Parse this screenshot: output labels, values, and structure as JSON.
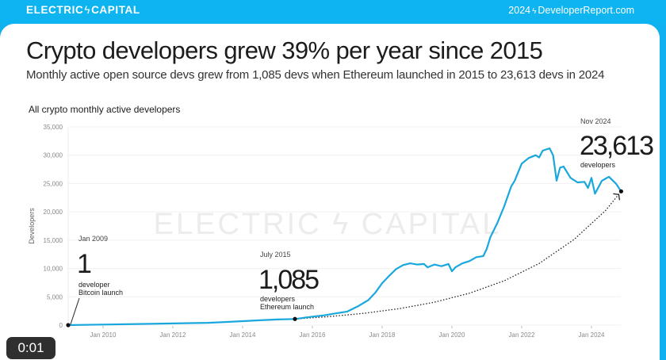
{
  "header": {
    "brand": "ELECTRIC",
    "brand_separator": "ϟ",
    "brand_2": "CAPITAL",
    "report_year": "2024",
    "report_separator": "ϟ",
    "report_site": "DeveloperReport.com"
  },
  "title": "Crypto developers grew 39% per year since 2015",
  "subtitle": "Monthly active open source devs grew from 1,085 devs when Ethereum launched in 2015 to 23,613 devs in 2024",
  "video_timestamp": "0:01",
  "watermark": "ELECTRIC ϟ CAPITAL",
  "colors": {
    "accent": "#0db4f0",
    "line": "#1aa7dd",
    "text": "#1c1c1c"
  },
  "annotations": [
    {
      "date": "Jan 2009",
      "value": "1",
      "line1": "developer",
      "line2": "Bitcoin launch"
    },
    {
      "date": "July 2015",
      "value": "1,085",
      "line1": "developers",
      "line2": "Ethereum launch"
    },
    {
      "date": "Nov 2024",
      "value": "23,613",
      "line1": "developers",
      "line2": ""
    }
  ],
  "chart_data": {
    "type": "line",
    "title": "All crypto monthly active developers",
    "xlabel": "",
    "ylabel": "Developers",
    "ylim": [
      0,
      35000
    ],
    "xlim": [
      2009.0,
      2024.9
    ],
    "yticks": [
      0,
      5000,
      10000,
      15000,
      20000,
      25000,
      30000,
      35000
    ],
    "ytick_labels": [
      "0",
      "5,000",
      "10,000",
      "15,000",
      "20,000",
      "25,000",
      "30,000",
      "35,000"
    ],
    "xticks": [
      2010,
      2012,
      2014,
      2016,
      2018,
      2020,
      2022,
      2024
    ],
    "xtick_labels": [
      "Jan 2010",
      "Jan 2012",
      "Jan 2014",
      "Jan 2016",
      "Jan 2018",
      "Jan 2020",
      "Jan 2022",
      "Jan 2024"
    ],
    "grid": true,
    "legend": "none",
    "series": [
      {
        "name": "Monthly active developers",
        "x": [
          2009.0,
          2010.0,
          2011.0,
          2012.0,
          2013.0,
          2013.5,
          2014.0,
          2014.5,
          2015.0,
          2015.5,
          2016.0,
          2016.3,
          2016.6,
          2017.0,
          2017.3,
          2017.6,
          2017.8,
          2018.0,
          2018.2,
          2018.4,
          2018.6,
          2018.8,
          2019.0,
          2019.2,
          2019.3,
          2019.5,
          2019.7,
          2019.9,
          2020.0,
          2020.1,
          2020.3,
          2020.5,
          2020.7,
          2020.9,
          2021.0,
          2021.1,
          2021.3,
          2021.5,
          2021.7,
          2021.8,
          2021.9,
          2022.0,
          2022.2,
          2022.4,
          2022.5,
          2022.6,
          2022.8,
          2022.9,
          2023.0,
          2023.1,
          2023.2,
          2023.4,
          2023.6,
          2023.8,
          2023.9,
          2024.0,
          2024.1,
          2024.3,
          2024.5,
          2024.7,
          2024.85
        ],
        "values": [
          1,
          100,
          200,
          300,
          400,
          550,
          700,
          850,
          1000,
          1085,
          1500,
          1700,
          2000,
          2400,
          3300,
          4400,
          5700,
          7400,
          8700,
          9900,
          10600,
          10900,
          10700,
          10800,
          10200,
          10700,
          10400,
          10800,
          9500,
          10200,
          10900,
          11300,
          12000,
          12200,
          13500,
          15500,
          18000,
          21000,
          24500,
          25500,
          27000,
          28500,
          29500,
          30000,
          29600,
          30800,
          31200,
          30000,
          25500,
          27800,
          28000,
          26000,
          25200,
          25300,
          24200,
          26000,
          23200,
          25500,
          26200,
          25000,
          23613
        ]
      },
      {
        "name": "39% annual growth trend",
        "style": "dotted",
        "x": [
          2015.5,
          2016.5,
          2017.5,
          2018.5,
          2019.5,
          2020.5,
          2021.5,
          2022.5,
          2023.5,
          2024.4,
          2024.85
        ],
        "values": [
          1085,
          1508,
          2096,
          2914,
          4050,
          5630,
          7826,
          10878,
          15121,
          20200,
          23613
        ]
      }
    ]
  }
}
